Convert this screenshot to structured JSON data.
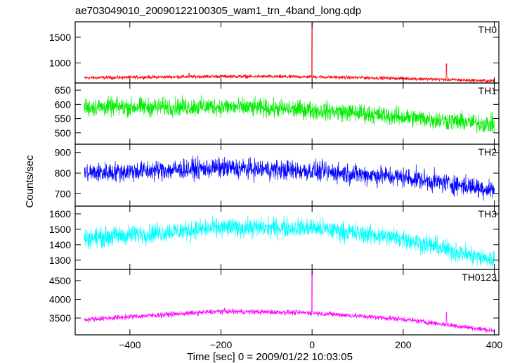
{
  "chart_data": {
    "type": "line",
    "title": "ae703049010_20090122100305_wam1_trn_4band_long.qdp",
    "xlabel": "Time [sec] 0 = 2009/01/22 10:03:05",
    "ylabel": "Counts/sec",
    "xlim": [
      -520,
      410
    ],
    "x_ticks": [
      -400,
      -200,
      0,
      200,
      400
    ],
    "panels": [
      {
        "name": "TH0",
        "color": "#ff0000",
        "ylim": [
          610,
          1800
        ],
        "y_ticks": [
          1000,
          1500
        ],
        "base": [
          [
            -500,
            710
          ],
          [
            -200,
            740
          ],
          [
            0,
            730
          ],
          [
            200,
            700
          ],
          [
            400,
            650
          ]
        ],
        "noise": 30,
        "spikes": [
          [
            0,
            1800
          ],
          [
            295,
            985
          ],
          [
            -270,
            800
          ]
        ]
      },
      {
        "name": "TH1",
        "color": "#00ee00",
        "ylim": [
          460,
          675
        ],
        "y_ticks": [
          500,
          550,
          600,
          650
        ],
        "base": [
          [
            -500,
            590
          ],
          [
            -200,
            592
          ],
          [
            0,
            580
          ],
          [
            100,
            570
          ],
          [
            200,
            555
          ],
          [
            400,
            530
          ]
        ],
        "noise": 28,
        "spikes": []
      },
      {
        "name": "TH2",
        "color": "#0000ff",
        "ylim": [
          640,
          940
        ],
        "y_ticks": [
          700,
          800,
          900
        ],
        "base": [
          [
            -500,
            800
          ],
          [
            -200,
            825
          ],
          [
            0,
            810
          ],
          [
            200,
            780
          ],
          [
            400,
            720
          ]
        ],
        "noise": 42,
        "spikes": []
      },
      {
        "name": "TH3",
        "color": "#00ffff",
        "ylim": [
          1240,
          1650
        ],
        "y_ticks": [
          1300,
          1400,
          1500,
          1600
        ],
        "base": [
          [
            -500,
            1440
          ],
          [
            -200,
            1510
          ],
          [
            0,
            1510
          ],
          [
            200,
            1440
          ],
          [
            350,
            1330
          ],
          [
            400,
            1300
          ]
        ],
        "noise": 55,
        "spikes": []
      },
      {
        "name": "TH0123",
        "color": "#ff00ff",
        "ylim": [
          3050,
          4800
        ],
        "y_ticks": [
          3500,
          4000,
          4500
        ],
        "base": [
          [
            -500,
            3460
          ],
          [
            -200,
            3680
          ],
          [
            0,
            3640
          ],
          [
            200,
            3470
          ],
          [
            400,
            3160
          ]
        ],
        "noise": 60,
        "spikes": [
          [
            0,
            4800
          ],
          [
            295,
            3650
          ]
        ]
      }
    ]
  }
}
